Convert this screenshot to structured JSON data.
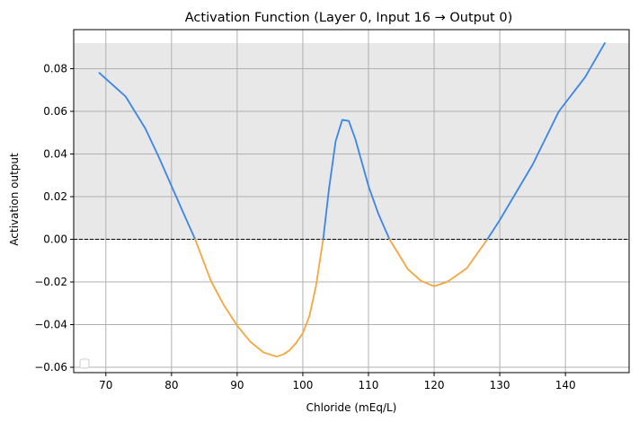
{
  "chart_data": {
    "type": "line",
    "title": "Activation Function (Layer 0, Input 16 → Output 0)",
    "xlabel": "Chloride (mEq/L)",
    "ylabel": "Activation output",
    "xlim": [
      65.1,
      149.7
    ],
    "ylim": [
      -0.0625,
      0.0983
    ],
    "xticks": [
      70,
      80,
      90,
      100,
      110,
      120,
      130,
      140
    ],
    "yticks": [
      -0.06,
      -0.04,
      -0.02,
      0.0,
      0.02,
      0.04,
      0.06,
      0.08
    ],
    "ytick_labels": [
      "−0.06",
      "−0.04",
      "−0.02",
      "0.00",
      "0.02",
      "0.04",
      "0.06",
      "0.08"
    ],
    "grid": true,
    "legend": "lower-left (empty)",
    "positive_region": {
      "y_from": 0.0,
      "y_to": 0.092,
      "color": "#e8e8e8"
    },
    "zero_line": {
      "y": 0.0,
      "style": "dashed",
      "color": "#000000"
    },
    "colors": {
      "positive": "#3b85e5",
      "negative": "#f5a63c",
      "grid": "#b0b0b0"
    },
    "series": [
      {
        "x": [
          69,
          73,
          76,
          78,
          80,
          82,
          83.6,
          86,
          88,
          90,
          92,
          94,
          96,
          97,
          98,
          99,
          100,
          101,
          102,
          103.1,
          104,
          105,
          106,
          107,
          108,
          110,
          111.5,
          113.2,
          116,
          118,
          120,
          122,
          125,
          128.1,
          130,
          135,
          139,
          143,
          146
        ],
        "y": [
          0.078,
          0.067,
          0.052,
          0.039,
          0.025,
          0.011,
          0.0,
          -0.0195,
          -0.031,
          -0.0405,
          -0.048,
          -0.053,
          -0.055,
          -0.054,
          -0.052,
          -0.0485,
          -0.044,
          -0.036,
          -0.022,
          0.0,
          0.024,
          0.046,
          0.056,
          0.0555,
          0.047,
          0.025,
          0.012,
          0.0,
          -0.014,
          -0.0195,
          -0.022,
          -0.02,
          -0.0135,
          0.0,
          0.009,
          0.035,
          0.06,
          0.076,
          0.092
        ]
      }
    ]
  }
}
